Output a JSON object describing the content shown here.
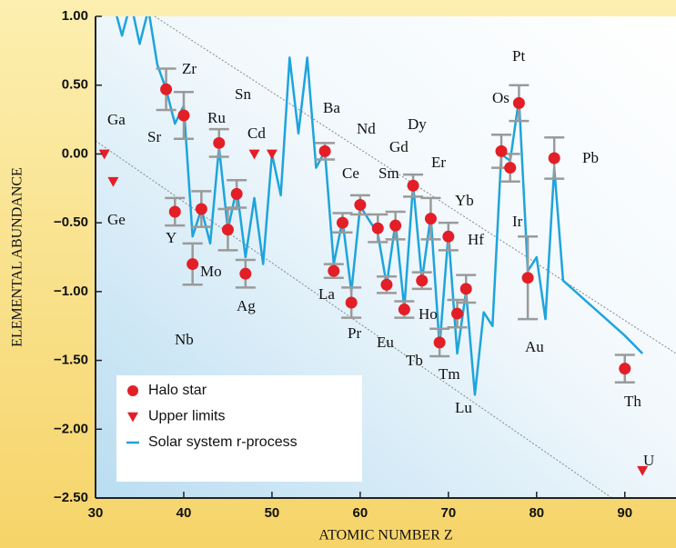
{
  "chart_data": {
    "type": "scatter",
    "xlabel": "ATOMIC NUMBER Z",
    "ylabel": "ELEMENTAL ABUNDANCE",
    "xlim": [
      30,
      95.8
    ],
    "ylim": [
      -2.5,
      1.0
    ],
    "xticks": [
      30,
      40,
      50,
      60,
      70,
      80,
      90
    ],
    "yticks": [
      {
        "value": 1.0,
        "label": "1.00"
      },
      {
        "value": 0.5,
        "label": "0.50"
      },
      {
        "value": 0,
        "label": "0.00"
      },
      {
        "value": -0.5,
        "label": "−0.50"
      },
      {
        "value": -1.0,
        "label": "−1.00"
      },
      {
        "value": -1.5,
        "label": "−1.50"
      },
      {
        "value": -2.0,
        "label": "−2.00"
      },
      {
        "value": -2.5,
        "label": "−2.50"
      }
    ],
    "legend": "lower left",
    "series": [
      {
        "name": "Halo star",
        "color": "#e31e26",
        "marker": "circle",
        "error_color": "#9a9a9a",
        "x": [
          38,
          39,
          40,
          41,
          42,
          44,
          45,
          46,
          47,
          56,
          57,
          58,
          59,
          60,
          62,
          63,
          64,
          65,
          66,
          67,
          68,
          69,
          70,
          71,
          72,
          76,
          77,
          78,
          79,
          82,
          90
        ],
        "values": [
          0.47,
          -0.42,
          0.28,
          -0.8,
          -0.4,
          0.08,
          -0.55,
          -0.29,
          -0.87,
          0.02,
          -0.85,
          -0.5,
          -1.08,
          -0.37,
          -0.54,
          -0.95,
          -0.52,
          -1.13,
          -0.23,
          -0.92,
          -0.47,
          -1.37,
          -0.6,
          -1.16,
          -0.98,
          0.02,
          -0.1,
          0.37,
          -0.9,
          -0.03,
          -1.56
        ],
        "errors": [
          0.15,
          0.1,
          0.17,
          0.15,
          0.13,
          0.1,
          0.15,
          0.1,
          0.1,
          0.06,
          0.05,
          0.07,
          0.11,
          0.07,
          0.1,
          0.06,
          0.1,
          0.06,
          0.08,
          0.06,
          0.15,
          0.1,
          0.1,
          0.1,
          0.1,
          0.12,
          0.1,
          0.13,
          0.3,
          0.15,
          0.1
        ]
      },
      {
        "name": "Upper limits",
        "color": "#e31e26",
        "marker": "triangle",
        "x": [
          31,
          32,
          48,
          50,
          92
        ],
        "values": [
          0.0,
          -0.2,
          0.0,
          0.0,
          -2.3
        ]
      },
      {
        "name": "Solar system r-process",
        "color": "#1ea4dc",
        "marker": "line",
        "x": [
          32,
          33,
          34,
          35,
          36,
          37,
          38,
          39,
          40,
          41,
          42,
          43,
          44,
          45,
          46,
          47,
          48,
          49,
          50,
          51,
          52,
          53,
          54,
          55,
          56,
          57,
          58,
          59,
          60,
          62,
          63,
          64,
          65,
          66,
          67,
          68,
          69,
          70,
          71,
          72,
          73,
          74,
          75,
          76,
          77,
          78,
          79,
          80,
          81,
          82,
          83,
          90,
          92
        ],
        "values": [
          1.1,
          0.86,
          1.1,
          0.8,
          1.05,
          0.65,
          0.47,
          0.22,
          0.35,
          -0.6,
          -0.4,
          -0.65,
          0.05,
          -0.55,
          -0.25,
          -0.75,
          -0.32,
          -0.8,
          0.0,
          -0.3,
          0.7,
          0.15,
          0.7,
          -0.1,
          0.02,
          -0.8,
          -0.48,
          -1.0,
          -0.38,
          -0.58,
          -0.95,
          -0.5,
          -1.12,
          -0.22,
          -0.92,
          -0.45,
          -1.4,
          -0.58,
          -1.45,
          -1.0,
          -1.75,
          -1.15,
          -1.25,
          0.0,
          -0.05,
          0.4,
          -0.85,
          -0.75,
          -1.2,
          -0.1,
          -0.92,
          -1.32,
          -1.45
        ]
      }
    ],
    "annotations": [
      "Ga",
      "Ge",
      "Sr",
      "Zr",
      "Y",
      "Ru",
      "Mo",
      "Nb",
      "Cd",
      "Ag",
      "Sn",
      "Ba",
      "Ce",
      "Nd",
      "Gd",
      "Dy",
      "Sm",
      "Er",
      "Yb",
      "Hf",
      "La",
      "Pr",
      "Eu",
      "Ho",
      "Tb",
      "Tm",
      "Lu",
      "Pt",
      "Os",
      "Ir",
      "Au",
      "Pb",
      "Th",
      "U"
    ]
  }
}
